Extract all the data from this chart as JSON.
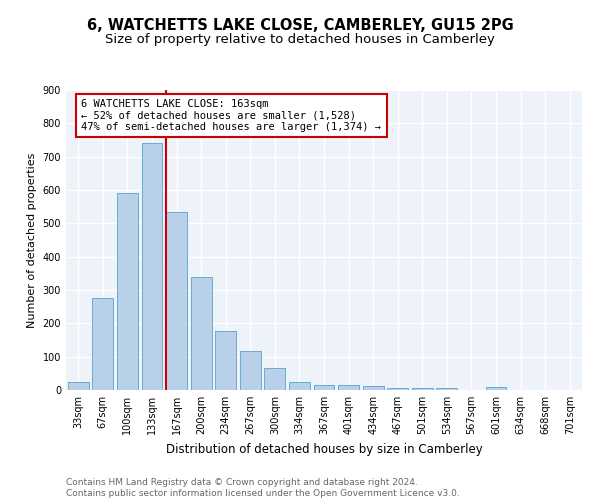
{
  "title": "6, WATCHETTS LAKE CLOSE, CAMBERLEY, GU15 2PG",
  "subtitle": "Size of property relative to detached houses in Camberley",
  "xlabel": "Distribution of detached houses by size in Camberley",
  "ylabel": "Number of detached properties",
  "categories": [
    "33sqm",
    "67sqm",
    "100sqm",
    "133sqm",
    "167sqm",
    "200sqm",
    "234sqm",
    "267sqm",
    "300sqm",
    "334sqm",
    "367sqm",
    "401sqm",
    "434sqm",
    "467sqm",
    "501sqm",
    "534sqm",
    "567sqm",
    "601sqm",
    "634sqm",
    "668sqm",
    "701sqm"
  ],
  "values": [
    25,
    275,
    590,
    740,
    535,
    340,
    178,
    118,
    67,
    25,
    15,
    15,
    12,
    7,
    7,
    7,
    0,
    8,
    0,
    0,
    0
  ],
  "bar_color": "#b8d0e8",
  "bar_edge_color": "#6aaad4",
  "vline_color": "#cc0000",
  "annotation_text": "6 WATCHETTS LAKE CLOSE: 163sqm\n← 52% of detached houses are smaller (1,528)\n47% of semi-detached houses are larger (1,374) →",
  "annotation_box_color": "#ffffff",
  "annotation_box_edge_color": "#cc0000",
  "ylim": [
    0,
    900
  ],
  "yticks": [
    0,
    100,
    200,
    300,
    400,
    500,
    600,
    700,
    800,
    900
  ],
  "background_color": "#eef2f9",
  "grid_color": "#ffffff",
  "footer_text": "Contains HM Land Registry data © Crown copyright and database right 2024.\nContains public sector information licensed under the Open Government Licence v3.0.",
  "title_fontsize": 10.5,
  "subtitle_fontsize": 9.5,
  "xlabel_fontsize": 8.5,
  "ylabel_fontsize": 8,
  "tick_fontsize": 7,
  "annotation_fontsize": 7.5,
  "footer_fontsize": 6.5
}
